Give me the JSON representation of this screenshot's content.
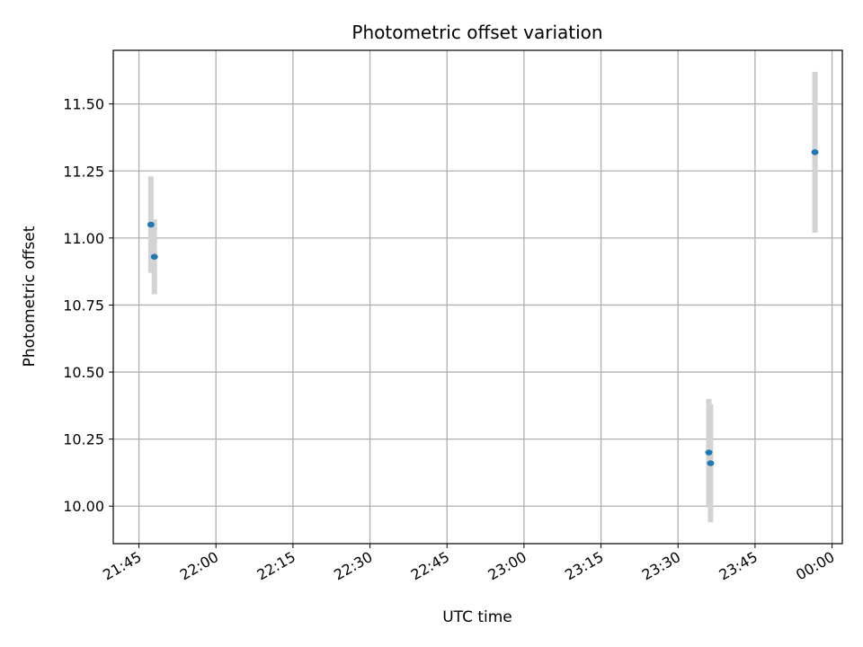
{
  "chart_data": {
    "type": "scatter",
    "title": "Photometric offset variation",
    "xlabel": "UTC time",
    "ylabel": "Photometric offset",
    "x_ticks": [
      "21:45",
      "22:00",
      "22:15",
      "22:30",
      "22:45",
      "23:00",
      "23:15",
      "23:30",
      "23:45",
      "00:00"
    ],
    "y_ticks": [
      "10.00",
      "10.25",
      "10.50",
      "10.75",
      "11.00",
      "11.25",
      "11.50"
    ],
    "xlim": [
      "21:40",
      "00:02"
    ],
    "ylim": [
      9.86,
      11.7
    ],
    "grid": true,
    "points": [
      {
        "x": "21:47:20",
        "y": 11.05,
        "err": 0.18
      },
      {
        "x": "21:48:00",
        "y": 10.93,
        "err": 0.14
      },
      {
        "x": "23:36:00",
        "y": 10.2,
        "err": 0.2
      },
      {
        "x": "23:36:20",
        "y": 10.16,
        "err": 0.22
      },
      {
        "x": "23:56:40",
        "y": 11.32,
        "err": 0.3
      }
    ],
    "point_color": "#1f77b4",
    "errorbar_color": "#d3d3d3"
  }
}
